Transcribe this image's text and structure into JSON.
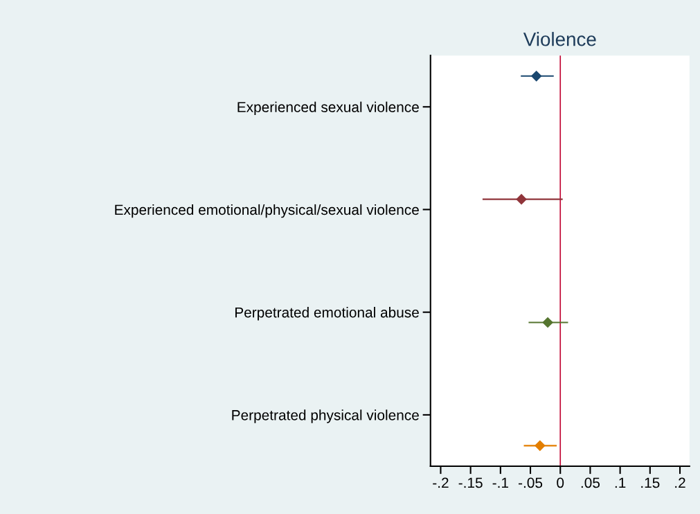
{
  "chart_data": {
    "type": "scatter",
    "orientation": "horizontal",
    "title": "Violence",
    "categories": [
      "Experienced sexual violence",
      "Experienced emotional/physical/sexual violence",
      "Perpetrated emotional abuse",
      "Perpetrated physical violence"
    ],
    "series": [
      {
        "color": "#1a476f",
        "values": [
          -0.04,
          null,
          null,
          null
        ],
        "errors": [
          [
            -0.066,
            -0.011
          ],
          null,
          null,
          null
        ]
      },
      {
        "color": "#90353b",
        "values": [
          null,
          -0.065,
          null,
          null
        ],
        "errors": [
          null,
          [
            -0.13,
            0.004
          ],
          null,
          null
        ]
      },
      {
        "color": "#55752f",
        "values": [
          null,
          null,
          -0.021,
          null
        ],
        "errors": [
          null,
          null,
          [
            -0.053,
            0.013
          ],
          null
        ]
      },
      {
        "color": "#e37e00",
        "values": [
          null,
          null,
          null,
          -0.034
        ],
        "errors": [
          null,
          null,
          null,
          [
            -0.061,
            -0.006
          ]
        ]
      }
    ],
    "xlim": [
      -0.217,
      0.216
    ],
    "xticks": [
      {
        "value": -0.2,
        "label": "-.2"
      },
      {
        "value": -0.15,
        "label": "-.15"
      },
      {
        "value": -0.1,
        "label": "-.1"
      },
      {
        "value": -0.05,
        "label": "-.05"
      },
      0,
      {
        "value": 0.05,
        "label": ".05"
      },
      {
        "value": 0.1,
        "label": ".1"
      },
      {
        "value": 0.15,
        "label": ".15"
      },
      {
        "value": 0.2,
        "label": ".2"
      }
    ],
    "ref_lines": [
      {
        "axis": "x",
        "value": 0,
        "color": "#c10534"
      }
    ],
    "marker": "diamond",
    "grid": false,
    "legend": false
  }
}
